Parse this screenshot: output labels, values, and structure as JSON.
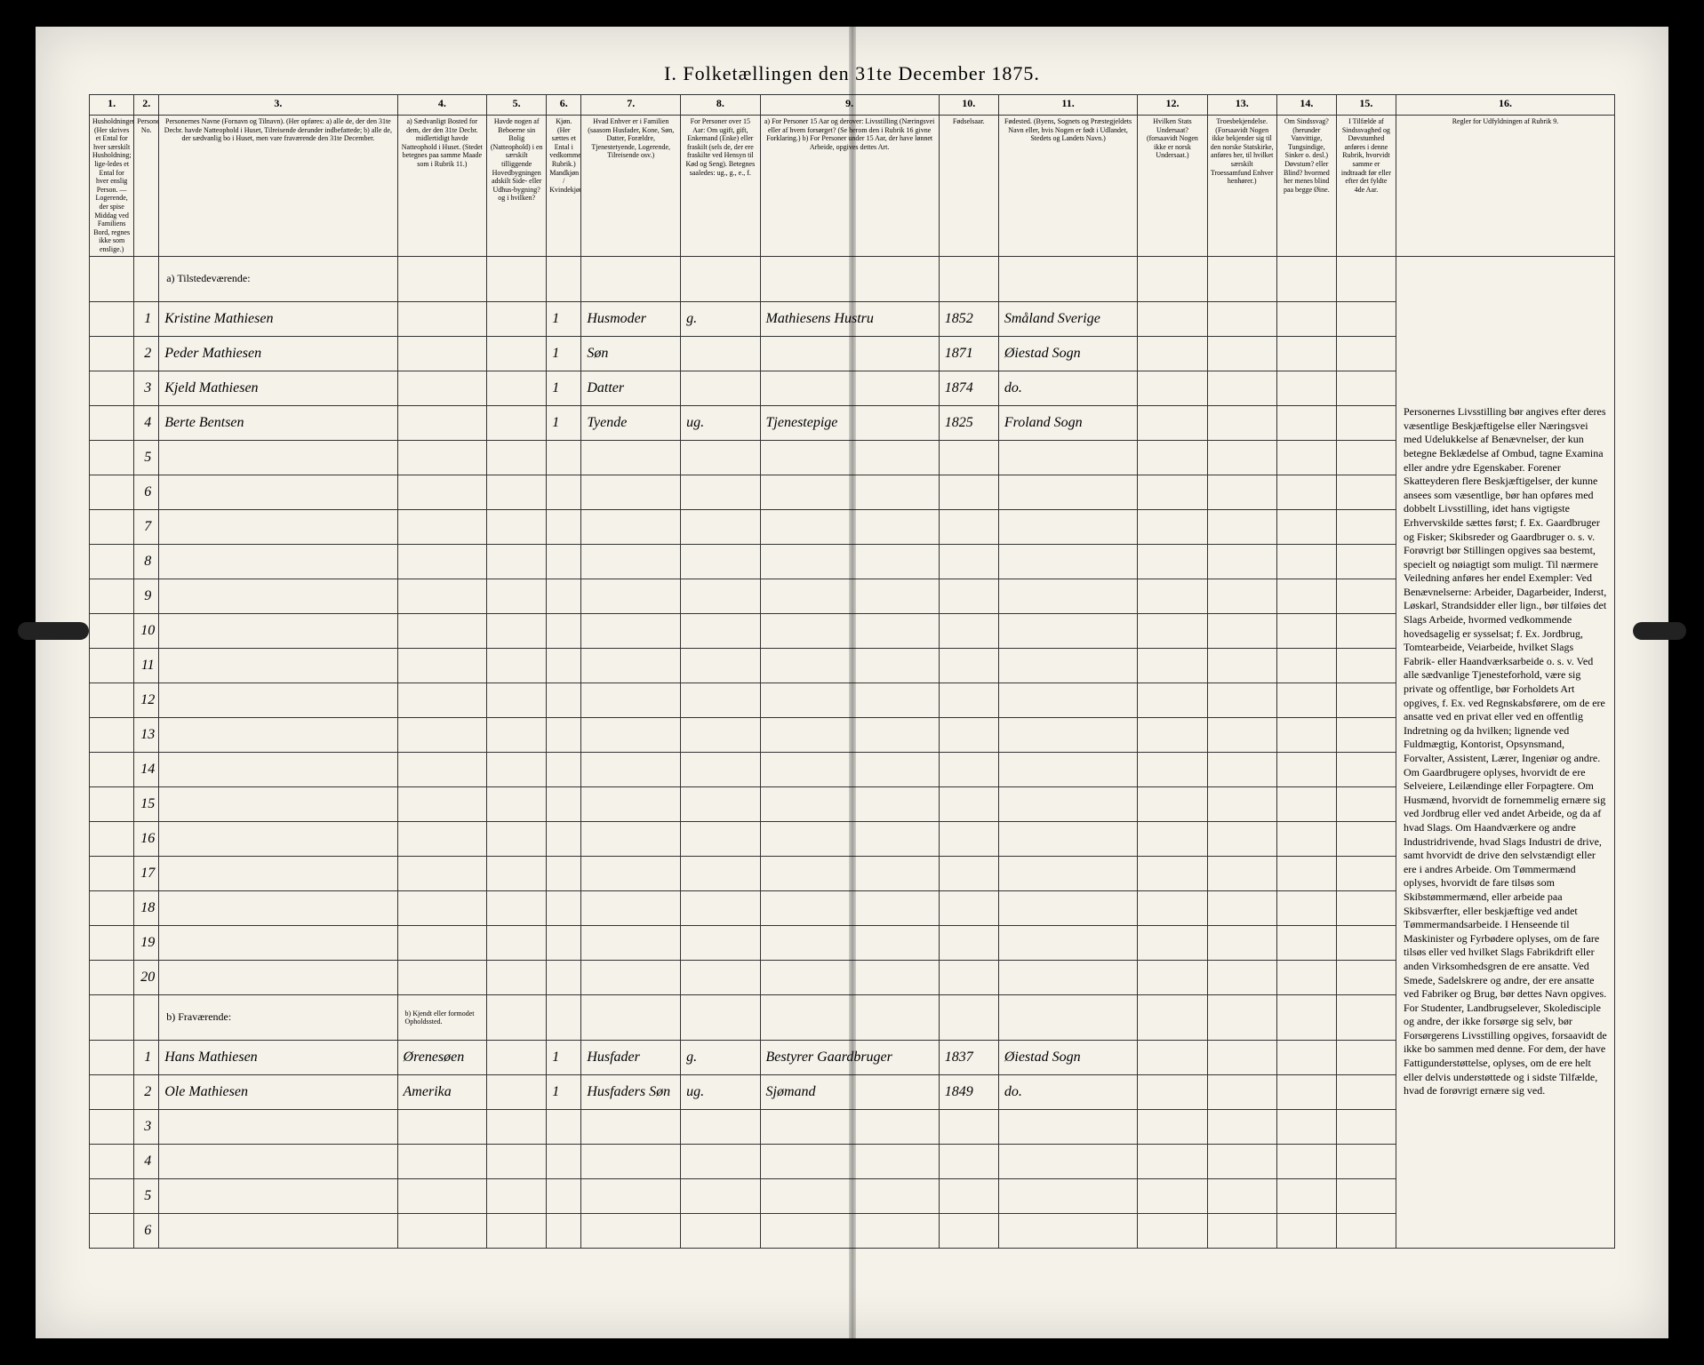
{
  "title": "I. Folketællingen den 31te December 1875.",
  "columns": {
    "nums": [
      "1.",
      "2.",
      "3.",
      "4.",
      "5.",
      "6.",
      "7.",
      "8.",
      "9.",
      "10.",
      "11.",
      "12.",
      "13.",
      "14.",
      "15.",
      "16."
    ],
    "widths": [
      45,
      25,
      240,
      90,
      60,
      35,
      100,
      80,
      180,
      60,
      140,
      70,
      70,
      60,
      60,
      220
    ],
    "headers": [
      "Husholdninger. (Her skrives et Ental for hver særskilt Husholdning; lige-ledes et Ental for hver enslig Person. — Logerende, der spise Middag ved Familiens Bord, regnes ikke som enslige.)",
      "Personens No.",
      "Personernes Navne (Fornavn og Tilnavn). (Her opføres: a) alle de, der den 31te Decbr. havde Natteophold i Huset, Tilreisende derunder indbefattede; b) alle de, der sædvanlig bo i Huset, men vare fraværende den 31te December.",
      "a) Sædvanligt Bosted for dem, der den 31te Decbr. midlertidigt havde Natteophold i Huset. (Stedet betegnes paa samme Maade som i Rubrik 11.)",
      "Havde nogen af Beboerne sin Bolig (Natteophold) i en særskilt tilliggende Hovedbygningen adskilt Side- eller Udhus-bygning? og i hvilken?",
      "Kjøn. (Her sættes et Ental i vedkommende Rubrik.) Mandkjøn / Kvindekjøn",
      "Hvad Enhver er i Familien (saasom Husfader, Kone, Søn, Datter, Forældre, Tjenestetyende, Logerende, Tilreisende osv.)",
      "For Personer over 15 Aar: Om ugift, gift, Enkemand (Enke) eller fraskilt (sels de, der ere fraskilte ved Hensyn til Kød og Seng). Betegnes saaledes: ug., g., e., f.",
      "a) For Personer 15 Aar og derover: Livsstilling (Næringsvei eller af hvem forsørget? (Se herom den i Rubrik 16 givne Forklaring.) b) For Personer under 15 Aar, der have lønnet Arbeide, opgives dettes Art.",
      "Fødselsaar.",
      "Fødested. (Byens, Sognets og Præstegjeldets Navn eller, hvis Nogen er født i Udlandet, Stedets og Landets Navn.)",
      "Hvilken Stats Undersaat? (forsaavidt Nogen ikke er norsk Undersaat.)",
      "Troesbekjendelse. (Forsaavidt Nogen ikke bekjender sig til den norske Statskirke, anføres her, til hvilket særskilt Troessamfund Enhver henhører.)",
      "Om Sindssvag? (herunder Vanvittige, Tungsindige, Sinker o. desl.) Døvstum? eller Blind? hvormed her menes blind paa begge Øine.",
      "I Tilfælde af Sindssvaghed og Døvstumhed anføres i denne Rubrik, hvorvidt samme er indtraadt før eller efter det fyldte 4de Aar.",
      "Regler for Udfyldningen af Rubrik 9."
    ]
  },
  "section_a": "a) Tilstedeværende:",
  "section_b": "b) Fraværende:",
  "section_b_col4": "b) Kjendt eller formodet Opholdssted.",
  "rows_a": [
    {
      "n": "1",
      "name": "Kristine Mathiesen",
      "c6": "1",
      "c7": "Husmoder",
      "c8": "g.",
      "c9": "Mathiesens Hustru",
      "c10": "1852",
      "c11": "Småland Sverige"
    },
    {
      "n": "2",
      "name": "Peder Mathiesen",
      "c6": "1",
      "c7": "Søn",
      "c8": "",
      "c9": "",
      "c10": "1871",
      "c11": "Øiestad Sogn"
    },
    {
      "n": "3",
      "name": "Kjeld Mathiesen",
      "c6": "1",
      "c7": "Datter",
      "c8": "",
      "c9": "",
      "c10": "1874",
      "c11": "do."
    },
    {
      "n": "4",
      "name": "Berte Bentsen",
      "c6": "1",
      "c7": "Tyende",
      "c8": "ug.",
      "c9": "Tjenestepige",
      "c10": "1825",
      "c11": "Froland Sogn"
    }
  ],
  "rows_b": [
    {
      "n": "1",
      "name": "Hans Mathiesen",
      "c4": "Ørenesøen",
      "c6": "1",
      "c7": "Husfader",
      "c8": "g.",
      "c9": "Bestyrer Gaardbruger",
      "c10": "1837",
      "c11": "Øiestad Sogn"
    },
    {
      "n": "2",
      "name": "Ole Mathiesen",
      "c4": "Amerika",
      "c6": "1",
      "c7": "Husfaders Søn",
      "c8": "ug.",
      "c9": "Sjømand",
      "c10": "1849",
      "c11": "do."
    }
  ],
  "empty_a": [
    "5",
    "6",
    "7",
    "8",
    "9",
    "10",
    "11",
    "12",
    "13",
    "14",
    "15",
    "16",
    "17",
    "18",
    "19",
    "20"
  ],
  "empty_b": [
    "3",
    "4",
    "5",
    "6"
  ],
  "right_notes": "Personernes Livsstilling bør angives efter deres væsentlige Beskjæftigelse eller Næringsvei med Udelukkelse af Benævnelser, der kun betegne Beklædelse af Ombud, tagne Examina eller andre ydre Egenskaber. Forener Skatteyderen flere Beskjæftigelser, der kunne ansees som væsentlige, bør han opføres med dobbelt Livsstilling, idet hans vigtigste Erhvervskilde sættes først; f. Ex. Gaardbruger og Fisker; Skibsreder og Gaardbruger o. s. v. Forøvrigt bør Stillingen opgives saa bestemt, specielt og nøiagtigt som muligt. Til nærmere Veiledning anføres her endel Exempler: Ved Benævnelserne: Arbeider, Dagarbeider, Inderst, Løskarl, Strandsidder eller lign., bør tilføies det Slags Arbeide, hvormed vedkommende hovedsagelig er sysselsat; f. Ex. Jordbrug, Tomtearbeide, Veiarbeide, hvilket Slags Fabrik- eller Haandværksarbeide o. s. v. Ved alle sædvanlige Tjenesteforhold, være sig private og offentlige, bør Forholdets Art opgives, f. Ex. ved Regnskabsførere, om de ere ansatte ved en privat eller ved en offentlig Indretning og da hvilken; lignende ved Fuldmægtig, Kontorist, Opsynsmand, Forvalter, Assistent, Lærer, Ingeniør og andre. Om Gaardbrugere oplyses, hvorvidt de ere Selveiere, Leilændinge eller Forpagtere. Om Husmænd, hvorvidt de fornemmelig ernære sig ved Jordbrug eller ved andet Arbeide, og da af hvad Slags. Om Haandværkere og andre Industridrivende, hvad Slags Industri de drive, samt hvorvidt de drive den selvstændigt eller ere i andres Arbeide. Om Tømmermænd oplyses, hvorvidt de fare tilsøs som Skibstømmermænd, eller arbeide paa Skibsværfter, eller beskjæftige ved andet Tømmermandsarbeide. I Henseende til Maskinister og Fyrbødere oplyses, om de fare tilsøs eller ved hvilket Slags Fabrikdrift eller anden Virksomhedsgren de ere ansatte. Ved Smede, Sadelskrere og andre, der ere ansatte ved Fabriker og Brug, bør dettes Navn opgives. For Studenter, Landbrugselever, Skoledisciple og andre, der ikke forsørge sig selv, bør Forsørgerens Livsstilling opgives, forsaavidt de ikke bo sammen med denne. For dem, der have Fattigunderstøttelse, oplyses, om de ere helt eller delvis understøttede og i sidste Tilfælde, hvad de forøvrigt ernære sig ved."
}
